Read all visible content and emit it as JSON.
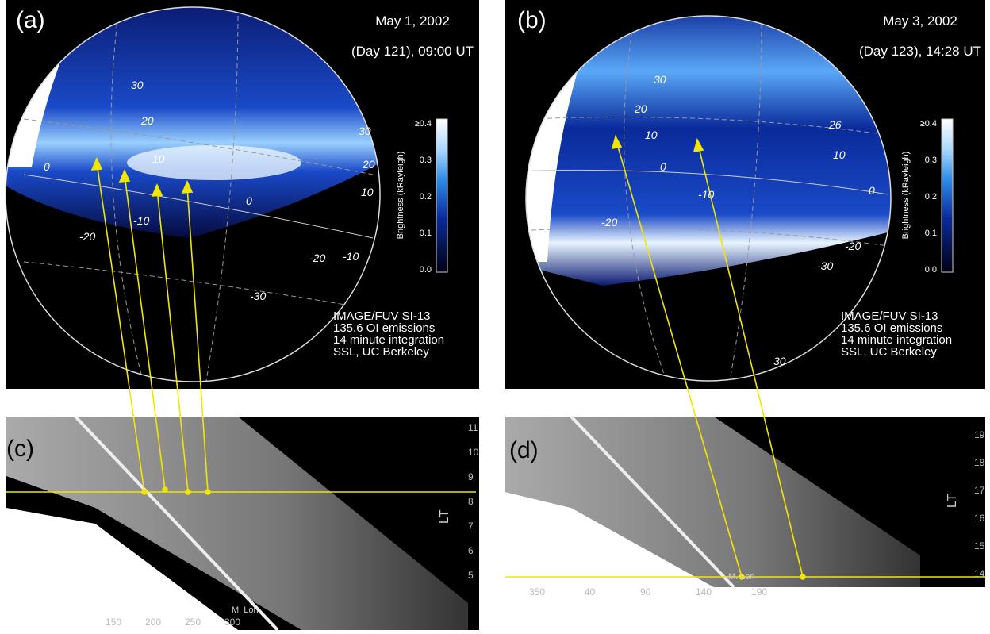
{
  "panels": [
    {
      "label": "(a)",
      "date": "May 1, 2002",
      "time": "(Day 121), 09:00 UT",
      "colorbar": {
        "title": "Brightness (kRayleigh)",
        "ticks": [
          "≥0.4",
          "0.3",
          "0.2",
          "0.1",
          "0.0"
        ]
      },
      "credits": [
        "IMAGE/FUV SI-13",
        "135.6 OI emissions",
        "14 minute integration",
        "SSL, UC Berkeley"
      ],
      "grid_labels": [
        "30",
        "20",
        "10",
        "0",
        "0",
        "-10",
        "-20",
        "-20",
        "-30",
        "-10",
        "30",
        "20",
        "10"
      ]
    },
    {
      "label": "(b)",
      "date": "May 3, 2002",
      "time": "(Day 123), 14:28 UT",
      "colorbar": {
        "title": "Brightness (kRayleigh)",
        "ticks": [
          "≥0.4",
          "0.3",
          "0.2",
          "0.1",
          "0.0"
        ]
      },
      "credits": [
        "IMAGE/FUV SI-13",
        "135.6 OI emissions",
        "14 minute integration",
        "SSL, UC Berkeley"
      ],
      "grid_labels": [
        "30",
        "20",
        "10",
        "0",
        "-10",
        "-20",
        "26",
        "10",
        "-20",
        "-30",
        "30",
        "0"
      ]
    }
  ],
  "keograms": [
    {
      "label": "(c)",
      "x_labels": [
        "150",
        "200",
        "250",
        "300"
      ],
      "y_labels": [
        "11",
        "10",
        "9",
        "8",
        "7",
        "6",
        "5"
      ],
      "axis_title": "LT",
      "marker": "M. Lon"
    },
    {
      "label": "(d)",
      "x_labels": [
        "350",
        "40",
        "90",
        "140",
        "190"
      ],
      "y_labels": [
        "19",
        "18",
        "17",
        "16",
        "15",
        "14"
      ],
      "axis_title": "LT",
      "marker": "M. Lon"
    }
  ]
}
